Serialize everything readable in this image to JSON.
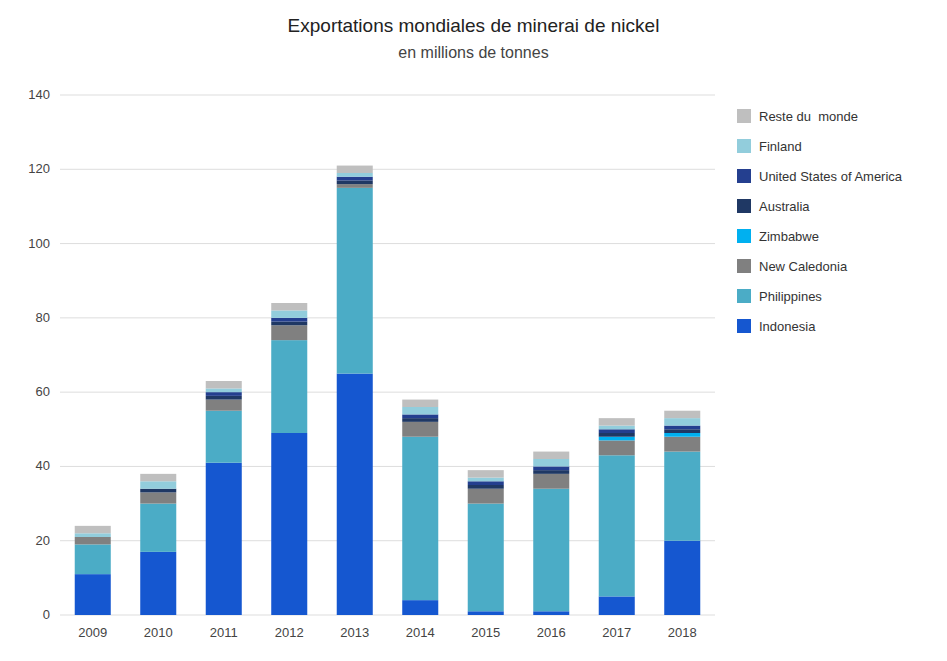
{
  "chart_data": {
    "type": "bar",
    "stacked": true,
    "title": "Exportations mondiales de minerai de nickel",
    "subtitle": "en millions de tonnes",
    "categories": [
      "2009",
      "2010",
      "2011",
      "2012",
      "2013",
      "2014",
      "2015",
      "2016",
      "2017",
      "2018"
    ],
    "series": [
      {
        "name": "Indonesia",
        "color": "#1557D0",
        "values": [
          11,
          17,
          41,
          49,
          65,
          4,
          1,
          1,
          5,
          20
        ]
      },
      {
        "name": "Philippines",
        "color": "#4BACC6",
        "values": [
          8,
          13,
          14,
          25,
          50,
          44,
          29,
          33,
          38,
          24
        ]
      },
      {
        "name": "New Caledonia",
        "color": "#808080",
        "values": [
          2,
          3,
          3,
          4,
          1,
          4,
          4,
          4,
          4,
          4
        ]
      },
      {
        "name": "Zimbabwe",
        "color": "#00B0F0",
        "values": [
          0,
          0,
          0,
          0,
          0,
          0,
          0,
          0,
          1,
          1
        ]
      },
      {
        "name": "Australia",
        "color": "#1F3864",
        "values": [
          0,
          1,
          1,
          1,
          1,
          1,
          1,
          1,
          1,
          1
        ]
      },
      {
        "name": "United States of America",
        "color": "#243F8F",
        "values": [
          0,
          0,
          1,
          1,
          1,
          1,
          1,
          1,
          1,
          1
        ]
      },
      {
        "name": "Finland",
        "color": "#92CDDC",
        "values": [
          1,
          2,
          1,
          2,
          1,
          2,
          1,
          2,
          1,
          2
        ]
      },
      {
        "name": "Reste du  monde",
        "color": "#BFBFBF",
        "values": [
          2,
          2,
          2,
          2,
          2,
          2,
          2,
          2,
          2,
          2
        ]
      }
    ],
    "ylim": [
      0,
      140
    ],
    "yticks": [
      0,
      20,
      40,
      60,
      80,
      100,
      120,
      140
    ],
    "grid": true,
    "legend": "right"
  }
}
